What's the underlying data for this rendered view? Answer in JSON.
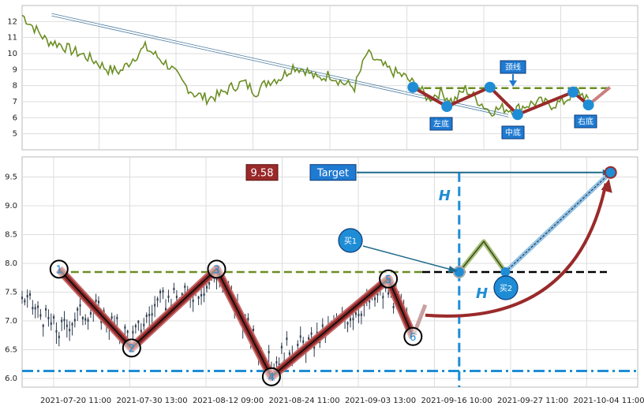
{
  "chart_data": [
    {
      "id": "top",
      "type": "line",
      "ylim": [
        4.0,
        13.0
      ],
      "yticks": [
        5,
        6,
        7,
        8,
        9,
        10,
        11,
        12
      ],
      "xlim": [
        0,
        100
      ],
      "price_points": [
        [
          0,
          12.4
        ],
        [
          2,
          11.6
        ],
        [
          4,
          10.8
        ],
        [
          6,
          10.6
        ],
        [
          8,
          10.2
        ],
        [
          10,
          9.9
        ],
        [
          12,
          9.5
        ],
        [
          14,
          9.0
        ],
        [
          16,
          8.9
        ],
        [
          18,
          9.7
        ],
        [
          20,
          10.4
        ],
        [
          22,
          9.8
        ],
        [
          24,
          9.2
        ],
        [
          26,
          8.2
        ],
        [
          28,
          7.5
        ],
        [
          30,
          7.2
        ],
        [
          32,
          7.4
        ],
        [
          34,
          7.9
        ],
        [
          36,
          8.2
        ],
        [
          38,
          7.6
        ],
        [
          40,
          8.3
        ],
        [
          42,
          8.5
        ],
        [
          44,
          9.2
        ],
        [
          46,
          9.0
        ],
        [
          48,
          8.4
        ],
        [
          50,
          8.7
        ],
        [
          52,
          8.2
        ],
        [
          54,
          7.9
        ],
        [
          56,
          10.0
        ],
        [
          58,
          9.4
        ],
        [
          60,
          8.9
        ],
        [
          62,
          8.6
        ],
        [
          64,
          8.0
        ],
        [
          66,
          7.2
        ],
        [
          68,
          7.6
        ],
        [
          70,
          7.0
        ],
        [
          72,
          7.8
        ],
        [
          74,
          7.1
        ],
        [
          76,
          6.4
        ],
        [
          78,
          6.6
        ],
        [
          80,
          6.5
        ],
        [
          82,
          6.8
        ],
        [
          84,
          7.0
        ],
        [
          86,
          6.8
        ],
        [
          88,
          7.0
        ],
        [
          90,
          7.7
        ],
        [
          92,
          7.2
        ]
      ],
      "pattern_points": [
        [
          63.5,
          7.9
        ],
        [
          69,
          6.7
        ],
        [
          76,
          7.9
        ],
        [
          80.5,
          6.2
        ],
        [
          89.5,
          7.6
        ],
        [
          92,
          6.8
        ],
        [
          95.5,
          7.9
        ]
      ],
      "pattern_labels": [
        "左底",
        "中底",
        "右底",
        "颈线"
      ],
      "neckline": 7.85,
      "trend_line": [
        [
          4.8,
          12.5
        ],
        [
          79,
          6.2
        ]
      ]
    },
    {
      "id": "bottom",
      "type": "candlestick",
      "ylim": [
        5.85,
        9.85
      ],
      "yticks": [
        6.0,
        6.5,
        7.0,
        7.5,
        8.0,
        8.5,
        9.0,
        9.5
      ],
      "xlim": [
        0,
        100
      ],
      "xticks": [
        "2021-07-20 11:00",
        "2021-07-30 13:00",
        "2021-08-12 09:00",
        "2021-08-24 11:00",
        "2021-09-03 13:00",
        "2021-09-16 10:00",
        "2021-09-27 11:00",
        "2021-10-04 11:00"
      ],
      "pattern_points": [
        [
          6,
          7.9
        ],
        [
          17.8,
          6.53
        ],
        [
          31.6,
          7.9
        ],
        [
          40.5,
          6.03
        ],
        [
          59.5,
          7.73
        ],
        [
          63.5,
          6.73
        ]
      ],
      "point_labels": [
        "1",
        "2",
        "3",
        "4",
        "5",
        "6"
      ],
      "neckline": 7.85,
      "support": 6.13,
      "projection": [
        [
          63.5,
          6.73
        ],
        [
          65.5,
          7.28
        ],
        [
          71,
          7.85
        ],
        [
          75,
          8.38
        ],
        [
          78.5,
          7.85
        ],
        [
          95.6,
          9.58
        ]
      ],
      "breakout_x": 71,
      "second_buy_x": 78.5,
      "target": 9.58,
      "target_label": "Target",
      "price_label": "9.58",
      "buy1_label": "买1",
      "buy2_label": "买2",
      "height_label": "H",
      "candle_segments": [
        [
          0,
          7.4
        ],
        [
          3,
          7.1
        ],
        [
          6,
          6.8
        ],
        [
          9,
          7.1
        ],
        [
          12,
          7.2
        ],
        [
          15,
          6.9
        ],
        [
          18,
          6.7
        ],
        [
          22,
          7.3
        ],
        [
          26,
          7.4
        ],
        [
          30,
          7.6
        ],
        [
          31.6,
          7.8
        ],
        [
          35,
          7.2
        ],
        [
          38,
          6.6
        ],
        [
          40.5,
          6.2
        ],
        [
          43,
          6.5
        ],
        [
          47,
          6.6
        ],
        [
          52,
          7.0
        ],
        [
          56,
          7.3
        ],
        [
          59.5,
          7.5
        ],
        [
          62,
          7.1
        ],
        [
          63.5,
          6.8
        ]
      ]
    }
  ],
  "colors": {
    "price_line": "#6b8e23",
    "pattern_red": "#9a2a2a",
    "pattern_edge": "#c98080",
    "neckline_green": "#6b8e23",
    "marker_blue": "#1f8dd6",
    "support_blue": "#1f8dd6",
    "label_box": "#1f7ad1",
    "price_box": "#9a2a2a",
    "candles": "#2d3a4d",
    "buy_line": "#1f6a8a"
  }
}
